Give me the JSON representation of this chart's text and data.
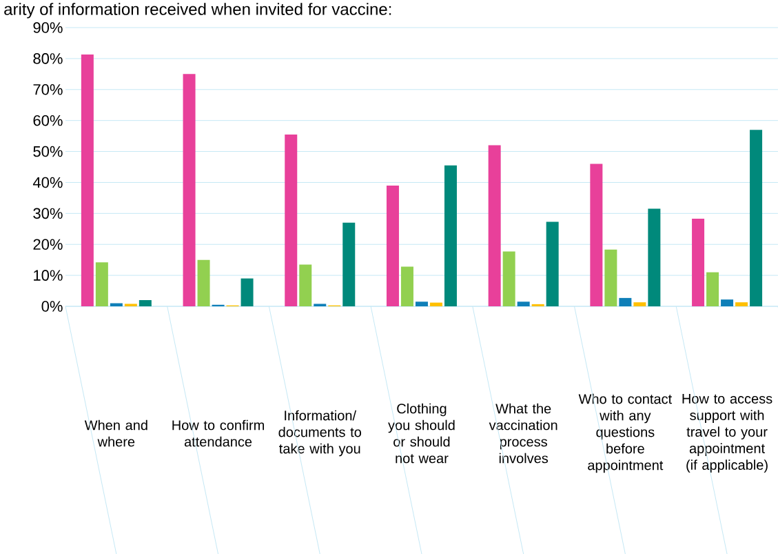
{
  "chart_data": {
    "type": "bar",
    "title": "arity of information received when invited for vaccine:",
    "categories": [
      "When and where",
      "How to confirm attendance",
      "Information/documents to take with you",
      "Clothing you should or should not wear",
      "What the vaccination process involves",
      "Who to contact with any questions before appointment",
      "How to access support with travel to your appointment (if applicable)"
    ],
    "series": [
      {
        "color": "#e8409a",
        "values": [
          81.3,
          75,
          55.5,
          39,
          52,
          46,
          28.3
        ]
      },
      {
        "color": "#92d050",
        "values": [
          14.2,
          15,
          13.5,
          12.8,
          17.7,
          18.3,
          11
        ]
      },
      {
        "color": "#0f7fb8",
        "values": [
          1,
          0.5,
          0.8,
          1.5,
          1.5,
          2.7,
          2.2
        ]
      },
      {
        "color": "#ffc000",
        "values": [
          0.8,
          0.3,
          0.3,
          1.2,
          0.7,
          1.3,
          1.3
        ]
      },
      {
        "color": "#00897b",
        "values": [
          2,
          9,
          27,
          45.5,
          27.3,
          31.5,
          57
        ]
      }
    ],
    "ylim": [
      0,
      90
    ],
    "yticks": [
      {
        "value": 0,
        "label": "0%"
      },
      {
        "value": 10,
        "label": "10%"
      },
      {
        "value": 20,
        "label": "20%"
      },
      {
        "value": 30,
        "label": "30%"
      },
      {
        "value": 40,
        "label": "40%"
      },
      {
        "value": 50,
        "label": "50%"
      },
      {
        "value": 60,
        "label": "60%"
      },
      {
        "value": 70,
        "label": "70%"
      },
      {
        "value": 80,
        "label": "80%"
      },
      {
        "value": 90,
        "label": "90%"
      }
    ],
    "grid": "y"
  }
}
